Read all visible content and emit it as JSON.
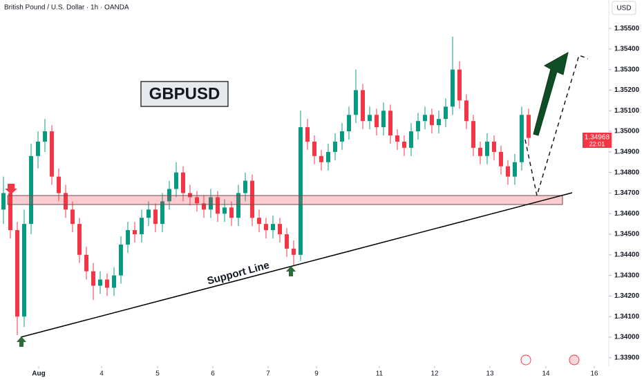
{
  "chart_data": {
    "type": "candlestick",
    "title": "British Pound / U.S. Dollar · 1h · OANDA",
    "currency": "USD",
    "symbol_label": "GBPUSD",
    "annotation": "Support Line",
    "last_price_label": "1.34968",
    "countdown": "22:01",
    "up_color": "#089981",
    "down_color": "#f23645",
    "xlim": [
      -0.5,
      87.5
    ],
    "ylim": [
      1.33859,
      1.35638
    ],
    "xticks": [
      {
        "value": 5.1,
        "label": "Aug"
      },
      {
        "value": 14.2,
        "label": "4"
      },
      {
        "value": 22.3,
        "label": "5"
      },
      {
        "value": 30.3,
        "label": "6"
      },
      {
        "value": 38.3,
        "label": "7"
      },
      {
        "value": 45.3,
        "label": "9"
      },
      {
        "value": 54.4,
        "label": "11"
      },
      {
        "value": 62.4,
        "label": "12"
      },
      {
        "value": 70.4,
        "label": "13"
      },
      {
        "value": 78.5,
        "label": "14"
      },
      {
        "value": 85.5,
        "label": "16"
      }
    ],
    "yticks": [
      {
        "value": 1.339,
        "label": "1.33900"
      },
      {
        "value": 1.34,
        "label": "1.34000"
      },
      {
        "value": 1.341,
        "label": "1.34100"
      },
      {
        "value": 1.342,
        "label": "1.34200"
      },
      {
        "value": 1.343,
        "label": "1.34300"
      },
      {
        "value": 1.344,
        "label": "1.34400"
      },
      {
        "value": 1.345,
        "label": "1.34500"
      },
      {
        "value": 1.346,
        "label": "1.34600"
      },
      {
        "value": 1.347,
        "label": "1.34700"
      },
      {
        "value": 1.348,
        "label": "1.34800"
      },
      {
        "value": 1.349,
        "label": "1.34900"
      },
      {
        "value": 1.35,
        "label": "1.35000"
      },
      {
        "value": 1.351,
        "label": "1.35100"
      },
      {
        "value": 1.352,
        "label": "1.35200"
      },
      {
        "value": 1.353,
        "label": "1.35300"
      },
      {
        "value": 1.354,
        "label": "1.35400"
      },
      {
        "value": 1.355,
        "label": "1.35500"
      }
    ],
    "ohlc": [
      [
        1.3462,
        1.3478,
        1.3455,
        1.347
      ],
      [
        1.347,
        1.3474,
        1.3448,
        1.3452
      ],
      [
        1.3452,
        1.3456,
        1.3401,
        1.341
      ],
      [
        1.341,
        1.3462,
        1.3405,
        1.3455
      ],
      [
        1.3455,
        1.3494,
        1.345,
        1.3488
      ],
      [
        1.3488,
        1.35,
        1.3482,
        1.3495
      ],
      [
        1.3495,
        1.3506,
        1.349,
        1.35
      ],
      [
        1.35,
        1.3503,
        1.3474,
        1.3478
      ],
      [
        1.3478,
        1.3482,
        1.3466,
        1.347
      ],
      [
        1.347,
        1.3474,
        1.3458,
        1.3462
      ],
      [
        1.3462,
        1.3466,
        1.3451,
        1.3455
      ],
      [
        1.3455,
        1.3458,
        1.3436,
        1.344
      ],
      [
        1.344,
        1.3444,
        1.3428,
        1.3432
      ],
      [
        1.3432,
        1.3436,
        1.3418,
        1.3425
      ],
      [
        1.3425,
        1.3432,
        1.3421,
        1.3428
      ],
      [
        1.3428,
        1.3431,
        1.342,
        1.3424
      ],
      [
        1.3424,
        1.3434,
        1.342,
        1.343
      ],
      [
        1.343,
        1.3449,
        1.3426,
        1.3445
      ],
      [
        1.3445,
        1.3456,
        1.3441,
        1.3452
      ],
      [
        1.3452,
        1.3456,
        1.3446,
        1.345
      ],
      [
        1.345,
        1.3462,
        1.3446,
        1.3458
      ],
      [
        1.3458,
        1.3466,
        1.3454,
        1.3462
      ],
      [
        1.3462,
        1.3465,
        1.3451,
        1.3455
      ],
      [
        1.3455,
        1.347,
        1.3451,
        1.3466
      ],
      [
        1.3466,
        1.3476,
        1.3462,
        1.3472
      ],
      [
        1.3472,
        1.3485,
        1.3468,
        1.348
      ],
      [
        1.348,
        1.3483,
        1.3466,
        1.347
      ],
      [
        1.347,
        1.3474,
        1.3464,
        1.3468
      ],
      [
        1.3468,
        1.3471,
        1.3461,
        1.3465
      ],
      [
        1.3465,
        1.3469,
        1.3458,
        1.3462
      ],
      [
        1.3462,
        1.3472,
        1.3458,
        1.3468
      ],
      [
        1.3468,
        1.3471,
        1.3456,
        1.346
      ],
      [
        1.346,
        1.3467,
        1.3456,
        1.3463
      ],
      [
        1.3463,
        1.3466,
        1.3454,
        1.3458
      ],
      [
        1.3458,
        1.3474,
        1.3454,
        1.347
      ],
      [
        1.347,
        1.348,
        1.3466,
        1.3476
      ],
      [
        1.3476,
        1.3479,
        1.3454,
        1.3458
      ],
      [
        1.3458,
        1.3462,
        1.3451,
        1.3455
      ],
      [
        1.3455,
        1.3458,
        1.3448,
        1.3452
      ],
      [
        1.3452,
        1.3459,
        1.3448,
        1.3455
      ],
      [
        1.3455,
        1.3458,
        1.3446,
        1.345
      ],
      [
        1.345,
        1.3453,
        1.3439,
        1.3443
      ],
      [
        1.3443,
        1.3447,
        1.3435,
        1.344
      ],
      [
        1.344,
        1.351,
        1.3437,
        1.3502
      ],
      [
        1.3502,
        1.3506,
        1.3491,
        1.3495
      ],
      [
        1.3495,
        1.3498,
        1.3484,
        1.3488
      ],
      [
        1.3488,
        1.3491,
        1.3481,
        1.3485
      ],
      [
        1.3485,
        1.3494,
        1.3481,
        1.349
      ],
      [
        1.349,
        1.3499,
        1.3486,
        1.3495
      ],
      [
        1.3495,
        1.3504,
        1.3491,
        1.35
      ],
      [
        1.35,
        1.3512,
        1.3496,
        1.3508
      ],
      [
        1.3508,
        1.353,
        1.3504,
        1.352
      ],
      [
        1.352,
        1.3523,
        1.3501,
        1.3505
      ],
      [
        1.3505,
        1.3512,
        1.3501,
        1.3508
      ],
      [
        1.3508,
        1.3511,
        1.3498,
        1.3502
      ],
      [
        1.3502,
        1.3514,
        1.3498,
        1.351
      ],
      [
        1.351,
        1.3513,
        1.3494,
        1.3498
      ],
      [
        1.3498,
        1.3501,
        1.3491,
        1.3495
      ],
      [
        1.3495,
        1.3498,
        1.3488,
        1.3492
      ],
      [
        1.3492,
        1.3504,
        1.3488,
        1.35
      ],
      [
        1.35,
        1.3509,
        1.3496,
        1.3505
      ],
      [
        1.3505,
        1.3512,
        1.3501,
        1.3508
      ],
      [
        1.3508,
        1.3511,
        1.3499,
        1.3503
      ],
      [
        1.3503,
        1.351,
        1.3499,
        1.3506
      ],
      [
        1.3506,
        1.3516,
        1.3502,
        1.3512
      ],
      [
        1.3512,
        1.3546,
        1.3508,
        1.353
      ],
      [
        1.353,
        1.3534,
        1.3511,
        1.3515
      ],
      [
        1.3515,
        1.3518,
        1.3501,
        1.3505
      ],
      [
        1.3505,
        1.3508,
        1.3488,
        1.3492
      ],
      [
        1.3492,
        1.3495,
        1.3484,
        1.3488
      ],
      [
        1.3488,
        1.3499,
        1.3484,
        1.3495
      ],
      [
        1.3495,
        1.3498,
        1.3486,
        1.349
      ],
      [
        1.349,
        1.3493,
        1.3479,
        1.3483
      ],
      [
        1.3483,
        1.3486,
        1.3474,
        1.3478
      ],
      [
        1.3478,
        1.3489,
        1.3474,
        1.3485
      ],
      [
        1.3485,
        1.3512,
        1.3481,
        1.3508
      ],
      [
        1.3508,
        1.3511,
        1.3493,
        1.34968
      ]
    ]
  }
}
